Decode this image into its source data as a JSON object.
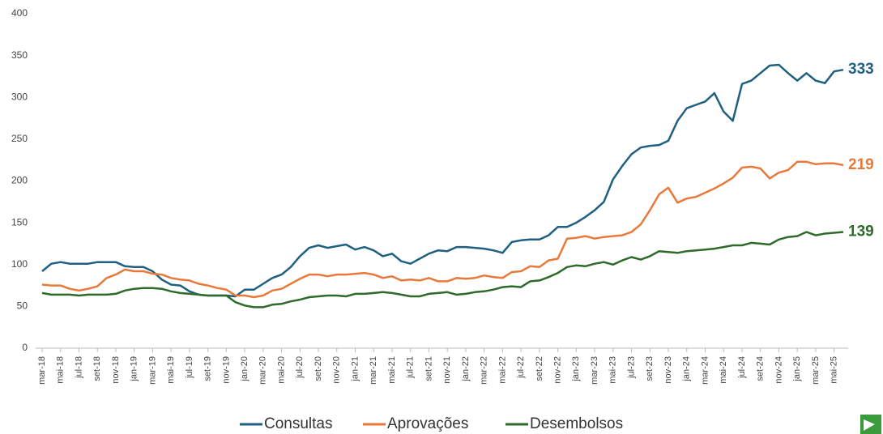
{
  "chart_data": {
    "type": "line",
    "categories": [
      "mar-18",
      null,
      "mai-18",
      null,
      "jul-18",
      null,
      "set-18",
      null,
      "nov-18",
      null,
      "jan-19",
      null,
      "mar-19",
      null,
      "mai-19",
      null,
      "jul-19",
      null,
      "set-19",
      null,
      "nov-19",
      null,
      "jan-20",
      null,
      "mar-20",
      null,
      "mai-20",
      null,
      "jul-20",
      null,
      "set-20",
      null,
      "nov-20",
      null,
      "jan-21",
      null,
      "mar-21",
      null,
      "mai-21",
      null,
      "jul-21",
      null,
      "set-21",
      null,
      "nov-21",
      null,
      "jan-22",
      null,
      "mar-22",
      null,
      "mai-22",
      null,
      "jul-22",
      null,
      "set-22",
      null,
      "nov-22",
      null,
      "jan-23",
      null,
      "mar-23",
      null,
      "mai-23",
      null,
      "jul-23",
      null,
      "set-23",
      null,
      "nov-23",
      null,
      "jan-24",
      null,
      "mar-24",
      null,
      "mai-24",
      null,
      "jul-24",
      null,
      "set-24",
      null,
      "nov-24",
      null,
      "jan-25",
      null,
      "mar-25",
      null,
      "mai-25",
      null
    ],
    "series": [
      {
        "name": "Consultas",
        "color": "#1f5f80",
        "values": [
          92,
          101,
          103,
          101,
          101,
          101,
          103,
          103,
          103,
          98,
          97,
          97,
          92,
          82,
          76,
          75,
          68,
          64,
          63,
          63,
          63,
          62,
          70,
          70,
          77,
          84,
          88,
          97,
          110,
          120,
          123,
          120,
          122,
          124,
          118,
          121,
          117,
          110,
          113,
          104,
          101,
          107,
          113,
          117,
          116,
          121,
          121,
          120,
          119,
          117,
          114,
          127,
          129,
          130,
          130,
          135,
          145,
          145,
          150,
          157,
          165,
          175,
          202,
          218,
          232,
          240,
          242,
          243,
          248,
          272,
          287,
          291,
          295,
          305,
          283,
          272,
          316,
          320,
          329,
          338,
          339,
          329,
          320,
          329,
          320,
          317,
          331,
          333
        ]
      },
      {
        "name": "Aprovações",
        "color": "#e8793a",
        "values": [
          76,
          75,
          75,
          71,
          69,
          71,
          74,
          84,
          88,
          94,
          92,
          92,
          89,
          88,
          84,
          82,
          81,
          77,
          75,
          72,
          70,
          63,
          63,
          61,
          63,
          69,
          71,
          77,
          83,
          88,
          88,
          86,
          88,
          88,
          89,
          90,
          88,
          84,
          86,
          81,
          82,
          81,
          84,
          80,
          80,
          84,
          83,
          84,
          87,
          85,
          84,
          91,
          92,
          98,
          97,
          105,
          107,
          131,
          132,
          134,
          131,
          133,
          134,
          135,
          139,
          148,
          165,
          184,
          192,
          174,
          179,
          181,
          186,
          191,
          197,
          204,
          216,
          217,
          215,
          203,
          210,
          213,
          223,
          223,
          220,
          221,
          221,
          219
        ]
      },
      {
        "name": "Desembolsos",
        "color": "#2e6b2a",
        "values": [
          66,
          64,
          64,
          64,
          63,
          64,
          64,
          64,
          65,
          69,
          71,
          72,
          72,
          71,
          68,
          66,
          65,
          64,
          63,
          63,
          63,
          55,
          51,
          49,
          49,
          52,
          53,
          56,
          58,
          61,
          62,
          63,
          63,
          62,
          65,
          65,
          66,
          67,
          66,
          64,
          62,
          62,
          65,
          66,
          67,
          64,
          65,
          67,
          68,
          70,
          73,
          74,
          73,
          80,
          81,
          85,
          90,
          97,
          99,
          98,
          101,
          103,
          100,
          105,
          109,
          106,
          110,
          116,
          115,
          114,
          116,
          117,
          118,
          119,
          121,
          123,
          123,
          126,
          125,
          124,
          130,
          133,
          134,
          139,
          135,
          137,
          138,
          139
        ]
      }
    ],
    "ylim": [
      0,
      400
    ],
    "yticks": [
      0,
      50,
      100,
      150,
      200,
      250,
      300,
      350,
      400
    ],
    "grid": false,
    "legend": "bottom"
  }
}
